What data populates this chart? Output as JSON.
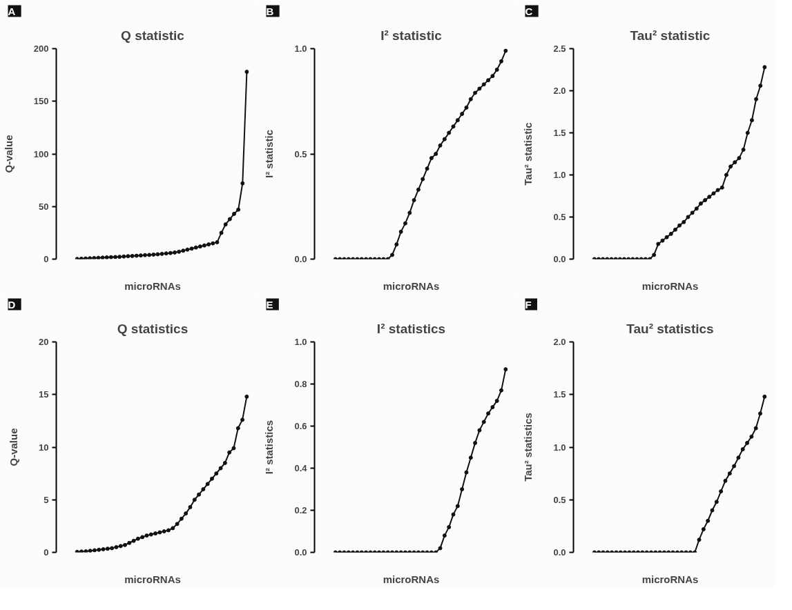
{
  "chart_data": [
    {
      "type": "line",
      "annotations": [
        "A"
      ],
      "title": "Q statistic",
      "xlabel": "microRNAs",
      "ylabel": "Q-value",
      "ylim": [
        0,
        200
      ],
      "yticks": [
        0,
        50,
        100,
        150,
        200
      ],
      "tick_labels": "y",
      "marker": "circle",
      "color": "#111111",
      "categories": [
        null,
        null,
        null,
        null,
        null,
        null,
        null,
        null,
        null,
        null,
        null,
        null,
        null,
        null,
        null,
        null,
        null,
        null,
        null,
        null,
        null,
        null,
        null,
        null,
        null,
        null,
        null,
        null,
        null,
        null,
        null,
        null,
        null,
        null,
        null,
        null,
        null,
        null,
        null,
        null,
        null
      ],
      "values": [
        0.2,
        0.4,
        0.6,
        0.8,
        1,
        1.2,
        1.4,
        1.6,
        1.8,
        2,
        2.2,
        2.5,
        2.8,
        3,
        3.2,
        3.5,
        3.8,
        4,
        4.3,
        4.6,
        5,
        5.4,
        5.8,
        6.3,
        7,
        8,
        9,
        10,
        11,
        12,
        13,
        14,
        15,
        16,
        25,
        33,
        38,
        43,
        47,
        72,
        178
      ]
    },
    {
      "type": "line",
      "annotations": [
        "B"
      ],
      "title": "I² statistic",
      "xlabel": "microRNAs",
      "ylabel": "I² statistic",
      "ylim": [
        0,
        1
      ],
      "yticks": [
        {
          "value": 0,
          "label": "0.0"
        },
        0.5,
        {
          "value": 1,
          "label": "1.0"
        }
      ],
      "tick_labels": "y",
      "marker": "circle",
      "color": "#111111",
      "categories": [
        null,
        null,
        null,
        null,
        null,
        null,
        null,
        null,
        null,
        null,
        null,
        null,
        null,
        null,
        null,
        null,
        null,
        null,
        null,
        null,
        null,
        null,
        null,
        null,
        null,
        null,
        null,
        null,
        null,
        null,
        null,
        null,
        null,
        null,
        null,
        null,
        null,
        null,
        null,
        null
      ],
      "values": [
        0,
        0,
        0,
        0,
        0,
        0,
        0,
        0,
        0,
        0,
        0,
        0,
        0,
        0.02,
        0.07,
        0.13,
        0.17,
        0.22,
        0.28,
        0.33,
        0.38,
        0.43,
        0.48,
        0.5,
        0.54,
        0.57,
        0.6,
        0.63,
        0.66,
        0.69,
        0.72,
        0.76,
        0.79,
        0.81,
        0.83,
        0.85,
        0.87,
        0.9,
        0.94,
        0.99
      ]
    },
    {
      "type": "line",
      "annotations": [
        "C"
      ],
      "title": "Tau² statistic",
      "xlabel": "microRNAs",
      "ylabel": "Tau² statistic",
      "ylim": [
        0,
        2.5
      ],
      "yticks": [
        {
          "value": 0,
          "label": "0.0"
        },
        0.5,
        {
          "value": 1,
          "label": "1.0"
        },
        1.5,
        {
          "value": 2,
          "label": "2.0"
        },
        2.5
      ],
      "tick_labels": "y",
      "marker": "circle",
      "color": "#111111",
      "categories": [
        null,
        null,
        null,
        null,
        null,
        null,
        null,
        null,
        null,
        null,
        null,
        null,
        null,
        null,
        null,
        null,
        null,
        null,
        null,
        null,
        null,
        null,
        null,
        null,
        null,
        null,
        null,
        null,
        null,
        null,
        null,
        null,
        null,
        null,
        null,
        null,
        null,
        null,
        null,
        null,
        null
      ],
      "values": [
        0,
        0,
        0,
        0,
        0,
        0,
        0,
        0,
        0,
        0,
        0,
        0,
        0,
        0,
        0.05,
        0.18,
        0.22,
        0.26,
        0.3,
        0.35,
        0.4,
        0.44,
        0.5,
        0.55,
        0.6,
        0.66,
        0.7,
        0.74,
        0.78,
        0.82,
        0.85,
        1.0,
        1.1,
        1.15,
        1.2,
        1.3,
        1.5,
        1.65,
        1.9,
        2.06,
        2.28
      ]
    },
    {
      "type": "line",
      "annotations": [
        "D"
      ],
      "title": "Q statistics",
      "xlabel": "microRNAs",
      "ylabel": "Q-value",
      "ylim": [
        0,
        20
      ],
      "yticks": [
        0,
        5,
        10,
        15,
        20
      ],
      "tick_labels": "y",
      "marker": "circle",
      "color": "#111111",
      "categories": [
        null,
        null,
        null,
        null,
        null,
        null,
        null,
        null,
        null,
        null,
        null,
        null,
        null,
        null,
        null,
        null,
        null,
        null,
        null,
        null,
        null,
        null,
        null,
        null,
        null,
        null,
        null,
        null,
        null,
        null,
        null,
        null,
        null,
        null,
        null,
        null,
        null,
        null,
        null,
        null
      ],
      "values": [
        0.05,
        0.08,
        0.1,
        0.15,
        0.2,
        0.25,
        0.3,
        0.35,
        0.4,
        0.5,
        0.6,
        0.7,
        0.9,
        1.1,
        1.3,
        1.45,
        1.6,
        1.7,
        1.8,
        1.9,
        2,
        2.1,
        2.3,
        2.7,
        3.2,
        3.7,
        4.3,
        5,
        5.5,
        6,
        6.5,
        7,
        7.5,
        8,
        8.5,
        9.5,
        9.9,
        11.8,
        12.6,
        14.8
      ]
    },
    {
      "type": "line",
      "annotations": [
        "E"
      ],
      "title": "I² statistics",
      "xlabel": "microRNAs",
      "ylabel": "I² statistics",
      "ylim": [
        0,
        1
      ],
      "yticks": [
        {
          "value": 0,
          "label": "0.0"
        },
        0.2,
        0.4,
        0.6,
        0.8,
        {
          "value": 1,
          "label": "1.0"
        }
      ],
      "tick_labels": "y",
      "marker": "circle",
      "color": "#111111",
      "categories": [
        null,
        null,
        null,
        null,
        null,
        null,
        null,
        null,
        null,
        null,
        null,
        null,
        null,
        null,
        null,
        null,
        null,
        null,
        null,
        null,
        null,
        null,
        null,
        null,
        null,
        null,
        null,
        null,
        null,
        null,
        null,
        null,
        null,
        null,
        null,
        null,
        null,
        null,
        null,
        null
      ],
      "values": [
        0,
        0,
        0,
        0,
        0,
        0,
        0,
        0,
        0,
        0,
        0,
        0,
        0,
        0,
        0,
        0,
        0,
        0,
        0,
        0,
        0,
        0,
        0,
        0,
        0.02,
        0.08,
        0.12,
        0.18,
        0.22,
        0.3,
        0.38,
        0.45,
        0.52,
        0.58,
        0.62,
        0.66,
        0.69,
        0.72,
        0.77,
        0.87
      ]
    },
    {
      "type": "line",
      "annotations": [
        "F"
      ],
      "title": "Tau² statistics",
      "xlabel": "microRNAs",
      "ylabel": "Tau² statistics",
      "ylim": [
        0,
        2
      ],
      "yticks": [
        {
          "value": 0,
          "label": "0.0"
        },
        0.5,
        {
          "value": 1,
          "label": "1.0"
        },
        1.5,
        {
          "value": 2,
          "label": "2.0"
        }
      ],
      "tick_labels": "y",
      "marker": "circle",
      "color": "#111111",
      "categories": [
        null,
        null,
        null,
        null,
        null,
        null,
        null,
        null,
        null,
        null,
        null,
        null,
        null,
        null,
        null,
        null,
        null,
        null,
        null,
        null,
        null,
        null,
        null,
        null,
        null,
        null,
        null,
        null,
        null,
        null,
        null,
        null,
        null,
        null,
        null,
        null,
        null,
        null,
        null,
        null
      ],
      "values": [
        0,
        0,
        0,
        0,
        0,
        0,
        0,
        0,
        0,
        0,
        0,
        0,
        0,
        0,
        0,
        0,
        0,
        0,
        0,
        0,
        0,
        0,
        0,
        0,
        0.12,
        0.22,
        0.3,
        0.4,
        0.48,
        0.58,
        0.68,
        0.75,
        0.82,
        0.9,
        0.98,
        1.04,
        1.1,
        1.18,
        1.32,
        1.48
      ]
    }
  ]
}
